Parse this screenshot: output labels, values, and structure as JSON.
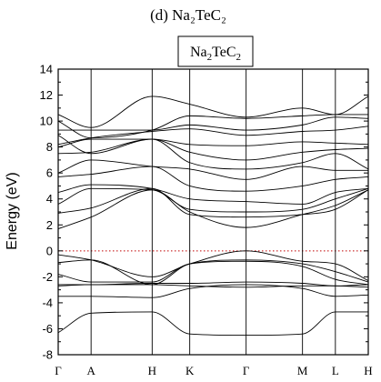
{
  "chart_data": {
    "type": "line",
    "title": "(d) Na₂TeC₂",
    "legend": {
      "main": "Na",
      "sub1": "2",
      "mid": "TeC",
      "sub2": "2",
      "placement": "top-center"
    },
    "ylabel": "Energy (eV)",
    "ylim": [
      -8,
      14
    ],
    "yticks": [
      -8,
      -6,
      -4,
      -2,
      0,
      2,
      4,
      6,
      8,
      10,
      12,
      14
    ],
    "ytick_labels": [
      "-8",
      "-6",
      "-4",
      "-2",
      "0",
      "2",
      "4",
      "6",
      "8",
      "10",
      "12",
      "14"
    ],
    "fermi_level": 0,
    "kpath": [
      {
        "label": "Γ",
        "pos": 0
      },
      {
        "label": "A",
        "pos": 0.7
      },
      {
        "label": "H",
        "pos": 2.0
      },
      {
        "label": "K",
        "pos": 2.8
      },
      {
        "label": "Γ",
        "pos": 4.0
      },
      {
        "label": "M",
        "pos": 5.2
      },
      {
        "label": "L",
        "pos": 5.9
      },
      {
        "label": "H",
        "pos": 6.6
      }
    ],
    "x": [
      0,
      0.7,
      2.0,
      2.8,
      4.0,
      5.2,
      5.9,
      6.6
    ],
    "series": [
      {
        "values": [
          -6.3,
          -4.8,
          -4.7,
          -6.4,
          -6.5,
          -6.4,
          -4.7,
          -4.7
        ]
      },
      {
        "values": [
          -3.5,
          -3.5,
          -3.6,
          -2.9,
          -2.6,
          -2.9,
          -3.5,
          -3.4
        ]
      },
      {
        "values": [
          -2.7,
          -2.6,
          -2.6,
          -2.7,
          -2.8,
          -2.7,
          -2.7,
          -2.8
        ]
      },
      {
        "values": [
          -2.6,
          -2.6,
          -2.5,
          -2.5,
          -2.4,
          -2.5,
          -2.7,
          -2.6
        ]
      },
      {
        "values": [
          -1.8,
          -2.4,
          -2.4,
          -1.0,
          -0.8,
          -1.2,
          -2.2,
          -2.6
        ]
      },
      {
        "values": [
          -0.9,
          -0.7,
          -2.6,
          -1.0,
          -0.7,
          -1.0,
          -1.6,
          -2.4
        ]
      },
      {
        "values": [
          -0.3,
          -0.7,
          -2.0,
          -1.0,
          0.0,
          -0.8,
          -1.0,
          -2.3
        ]
      },
      {
        "values": [
          1.7,
          2.6,
          4.7,
          3.0,
          1.8,
          2.8,
          3.5,
          4.7
        ]
      },
      {
        "values": [
          2.9,
          3.3,
          4.8,
          2.8,
          2.6,
          2.8,
          3.2,
          4.7
        ]
      },
      {
        "values": [
          3.6,
          4.8,
          4.7,
          3.2,
          3.0,
          3.2,
          4.0,
          4.8
        ]
      },
      {
        "values": [
          4.5,
          5.1,
          4.8,
          4.0,
          3.8,
          3.6,
          4.5,
          4.8
        ]
      },
      {
        "values": [
          5.7,
          5.9,
          6.5,
          5.0,
          4.6,
          5.0,
          5.5,
          5.7
        ]
      },
      {
        "values": [
          6.0,
          7.0,
          6.5,
          6.3,
          5.5,
          6.5,
          6.2,
          6.2
        ]
      },
      {
        "values": [
          7.5,
          7.6,
          8.6,
          6.8,
          6.3,
          6.8,
          7.5,
          6.3
        ]
      },
      {
        "values": [
          8.0,
          8.6,
          8.6,
          7.6,
          7.0,
          7.6,
          7.8,
          7.9
        ]
      },
      {
        "values": [
          8.9,
          7.5,
          8.6,
          8.2,
          8.1,
          8.4,
          8.3,
          8.2
        ]
      },
      {
        "values": [
          8.2,
          8.7,
          9.2,
          9.4,
          8.9,
          9.2,
          9.3,
          9.6
        ]
      },
      {
        "values": [
          9.3,
          9.3,
          9.3,
          9.7,
          9.3,
          9.7,
          10.3,
          10.2
        ]
      },
      {
        "values": [
          10.0,
          8.7,
          9.3,
          10.4,
          10.2,
          10.4,
          10.5,
          10.5
        ]
      },
      {
        "values": [
          10.5,
          9.5,
          11.9,
          11.3,
          10.3,
          11.0,
          10.5,
          11.9
        ]
      }
    ]
  }
}
